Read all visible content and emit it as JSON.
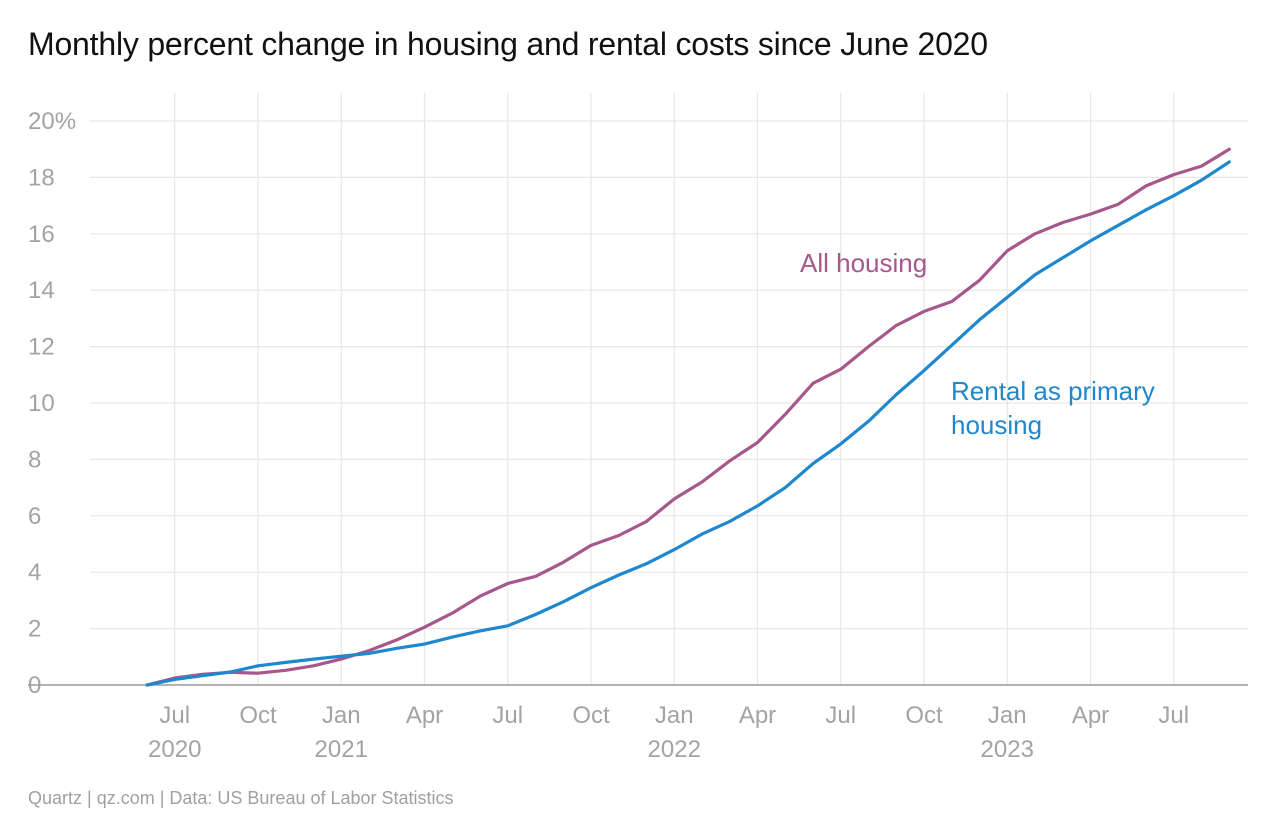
{
  "title": "Monthly percent change in housing and rental costs since June 2020",
  "source": "Quartz | qz.com | Data: US Bureau of Labor Statistics",
  "chart_data": {
    "type": "line",
    "title": "Monthly percent change in housing and rental costs since June 2020",
    "xlabel": "",
    "ylabel": "",
    "ylim": [
      0,
      20
    ],
    "yticks": [
      0,
      2,
      4,
      6,
      8,
      10,
      12,
      14,
      16,
      18,
      20
    ],
    "ytick_labels": [
      "0",
      "2",
      "4",
      "6",
      "8",
      "10",
      "12",
      "14",
      "16",
      "18",
      "20%"
    ],
    "xlim": [
      "2020-06",
      "2023-09"
    ],
    "xticks": [
      {
        "month": "2020-07",
        "label": "Jul",
        "year": "2020"
      },
      {
        "month": "2020-10",
        "label": "Oct",
        "year": ""
      },
      {
        "month": "2021-01",
        "label": "Jan",
        "year": "2021"
      },
      {
        "month": "2021-04",
        "label": "Apr",
        "year": ""
      },
      {
        "month": "2021-07",
        "label": "Jul",
        "year": ""
      },
      {
        "month": "2021-10",
        "label": "Oct",
        "year": ""
      },
      {
        "month": "2022-01",
        "label": "Jan",
        "year": "2022"
      },
      {
        "month": "2022-04",
        "label": "Apr",
        "year": ""
      },
      {
        "month": "2022-07",
        "label": "Jul",
        "year": ""
      },
      {
        "month": "2022-10",
        "label": "Oct",
        "year": ""
      },
      {
        "month": "2023-01",
        "label": "Jan",
        "year": "2023"
      },
      {
        "month": "2023-04",
        "label": "Apr",
        "year": ""
      },
      {
        "month": "2023-07",
        "label": "Jul",
        "year": ""
      }
    ],
    "grid": true,
    "x": [
      "2020-06",
      "2020-07",
      "2020-08",
      "2020-09",
      "2020-10",
      "2020-11",
      "2020-12",
      "2021-01",
      "2021-02",
      "2021-03",
      "2021-04",
      "2021-05",
      "2021-06",
      "2021-07",
      "2021-08",
      "2021-09",
      "2021-10",
      "2021-11",
      "2021-12",
      "2022-01",
      "2022-02",
      "2022-03",
      "2022-04",
      "2022-05",
      "2022-06",
      "2022-07",
      "2022-08",
      "2022-09",
      "2022-10",
      "2022-11",
      "2022-12",
      "2023-01",
      "2023-02",
      "2023-03",
      "2023-04",
      "2023-05",
      "2023-06",
      "2023-07",
      "2023-08",
      "2023-09"
    ],
    "series": [
      {
        "name": "All housing",
        "color": "#a6578b",
        "values": [
          0,
          0.25,
          0.38,
          0.45,
          0.42,
          0.52,
          0.68,
          0.92,
          1.22,
          1.6,
          2.05,
          2.55,
          3.15,
          3.6,
          3.85,
          4.35,
          4.95,
          5.3,
          5.8,
          6.6,
          7.2,
          7.95,
          8.6,
          9.6,
          10.7,
          11.2,
          12.0,
          12.75,
          13.25,
          13.6,
          14.35,
          15.4,
          16.0,
          16.4,
          16.7,
          17.05,
          17.7,
          18.1,
          18.4,
          19.0
        ]
      },
      {
        "name": "Rental as primary housing",
        "color": "#1e87cd",
        "values": [
          0,
          0.2,
          0.33,
          0.46,
          0.68,
          0.8,
          0.92,
          1.02,
          1.12,
          1.3,
          1.45,
          1.7,
          1.92,
          2.1,
          2.5,
          2.95,
          3.45,
          3.9,
          4.3,
          4.8,
          5.35,
          5.8,
          6.35,
          7.0,
          7.85,
          8.55,
          9.35,
          10.3,
          11.15,
          12.05,
          12.95,
          13.75,
          14.55,
          15.15,
          15.75,
          16.3,
          16.85,
          17.35,
          17.9,
          18.55
        ]
      }
    ]
  }
}
